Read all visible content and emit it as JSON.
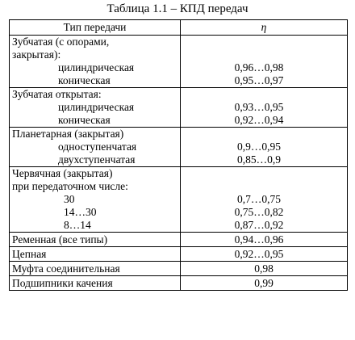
{
  "title": "Таблица 1.1 – КПД передач",
  "header": {
    "type": "Тип передачи",
    "eta": "η"
  },
  "groups": [
    {
      "lines": [
        {
          "type": "Зубчатая (с опорами,",
          "indent": 0,
          "value": ""
        },
        {
          "type": "закрытая):",
          "indent": 0,
          "value": ""
        },
        {
          "type": "цилиндрическая",
          "indent": 1,
          "value": "0,96…0,98"
        },
        {
          "type": "коническая",
          "indent": 1,
          "value": "0,95…0,97"
        }
      ]
    },
    {
      "lines": [
        {
          "type": "Зубчатая открытая:",
          "indent": 0,
          "value": ""
        },
        {
          "type": "цилиндрическая",
          "indent": 1,
          "value": "0,93…0,95"
        },
        {
          "type": "коническая",
          "indent": 1,
          "value": "0,92…0,94"
        }
      ]
    },
    {
      "lines": [
        {
          "type": "Планетарная (закрытая)",
          "indent": 0,
          "value": ""
        },
        {
          "type": "одноступенчатая",
          "indent": 1,
          "value": "0,9…0,95"
        },
        {
          "type": "двухступенчатая",
          "indent": 1,
          "value": "0,85…0,9"
        }
      ]
    },
    {
      "lines": [
        {
          "type": "Червячная (закрытая)",
          "indent": 0,
          "value": ""
        },
        {
          "type": "при передаточном числе:",
          "indent": 0,
          "value": ""
        },
        {
          "type": "30",
          "indent": 2,
          "value": "0,7…0,75"
        },
        {
          "type": "14…30",
          "indent": 2,
          "value": "0,75…0,82"
        },
        {
          "type": "8…14",
          "indent": 2,
          "value": "0,87…0,92"
        }
      ]
    },
    {
      "single": true,
      "lines": [
        {
          "type": "Ременная (все типы)",
          "indent": 0,
          "value": "0,94…0,96"
        }
      ]
    },
    {
      "single": true,
      "lines": [
        {
          "type": "Цепная",
          "indent": 0,
          "value": "0,92…0,95"
        }
      ]
    },
    {
      "single": true,
      "plain": true,
      "lines": [
        {
          "type": "Муфта соединительная",
          "indent": 0,
          "value": "0,98"
        }
      ]
    },
    {
      "single": true,
      "plain": true,
      "lines": [
        {
          "type": "Подшипники качения",
          "indent": 0,
          "value": "0,99"
        }
      ]
    }
  ]
}
